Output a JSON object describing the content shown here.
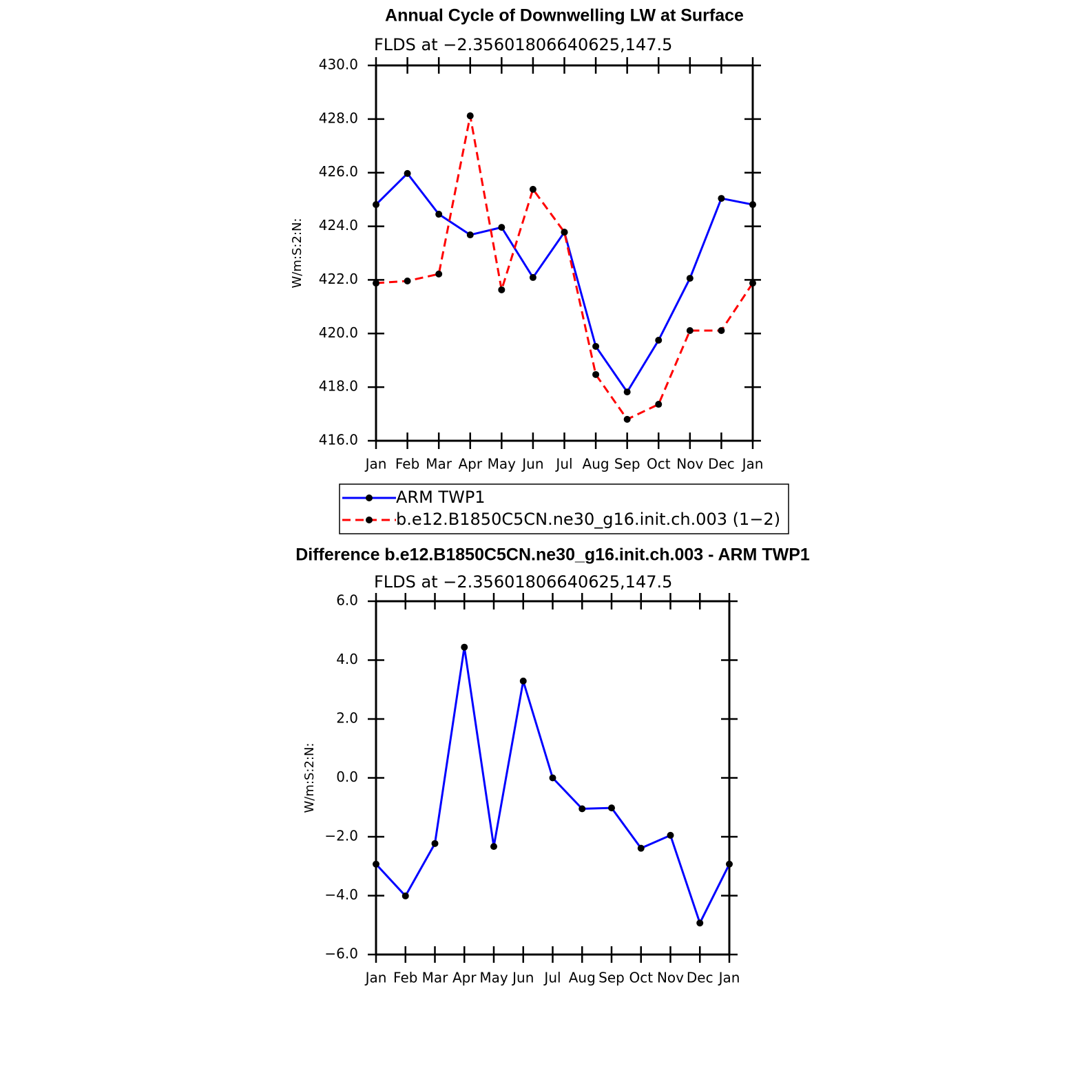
{
  "chart_data": [
    {
      "type": "line",
      "title": "Annual Cycle of Downwelling LW at Surface",
      "subtitle": "FLDS at −2.35601806640625,147.5",
      "y_label": "W/m:S:2:N:",
      "categories": [
        "Jan",
        "Feb",
        "Mar",
        "Apr",
        "May",
        "Jun",
        "Jul",
        "Aug",
        "Sep",
        "Oct",
        "Nov",
        "Dec",
        "Jan"
      ],
      "series": [
        {
          "name": "ARM TWP1",
          "color": "#0000ff",
          "line_style": "solid",
          "values": [
            424.81,
            425.97,
            424.45,
            423.68,
            423.96,
            422.09,
            423.78,
            419.52,
            417.82,
            419.75,
            422.06,
            425.04,
            424.81
          ]
        },
        {
          "name": "b.e12.B1850C5CN.ne30_g16.init.ch.003 (1−2)",
          "color": "#ff0000",
          "line_style": "dashed",
          "values": [
            421.88,
            421.96,
            422.22,
            428.12,
            421.63,
            425.38,
            423.78,
            418.47,
            416.8,
            417.36,
            420.11,
            420.11,
            421.88
          ]
        }
      ],
      "marker_color": "#000000",
      "ylim": [
        416,
        430
      ],
      "yticks": [
        {
          "value": 416,
          "label": "416.0"
        },
        {
          "value": 418,
          "label": "418.0"
        },
        {
          "value": 420,
          "label": "420.0"
        },
        {
          "value": 422,
          "label": "422.0"
        },
        {
          "value": 424,
          "label": "424.0"
        },
        {
          "value": 426,
          "label": "426.0"
        },
        {
          "value": 428,
          "label": "428.0"
        },
        {
          "value": 430,
          "label": "430.0"
        }
      ],
      "legend": "below"
    },
    {
      "type": "line",
      "title": "Difference b.e12.B1850C5CN.ne30_g16.init.ch.003 - ARM TWP1",
      "subtitle": "FLDS at −2.35601806640625,147.5",
      "y_label": "W/m:S:2:N:",
      "categories": [
        "Jan",
        "Feb",
        "Mar",
        "Apr",
        "May",
        "Jun",
        "Jul",
        "Aug",
        "Sep",
        "Oct",
        "Nov",
        "Dec",
        "Jan"
      ],
      "series": [
        {
          "color": "#0000ff",
          "line_style": "solid",
          "values": [
            -2.93,
            -4.01,
            -2.23,
            4.44,
            -2.33,
            3.29,
            0.0,
            -1.05,
            -1.02,
            -2.39,
            -1.95,
            -4.93,
            -2.93
          ]
        }
      ],
      "marker_color": "#000000",
      "ylim": [
        -6,
        6
      ],
      "yticks": [
        {
          "value": -6,
          "label": "−6.0"
        },
        {
          "value": -4,
          "label": "−4.0"
        },
        {
          "value": -2,
          "label": "−2.0"
        },
        {
          "value": 0,
          "label": "0.0"
        },
        {
          "value": 2,
          "label": "2.0"
        },
        {
          "value": 4,
          "label": "4.0"
        },
        {
          "value": 6,
          "label": "6.0"
        }
      ]
    }
  ]
}
